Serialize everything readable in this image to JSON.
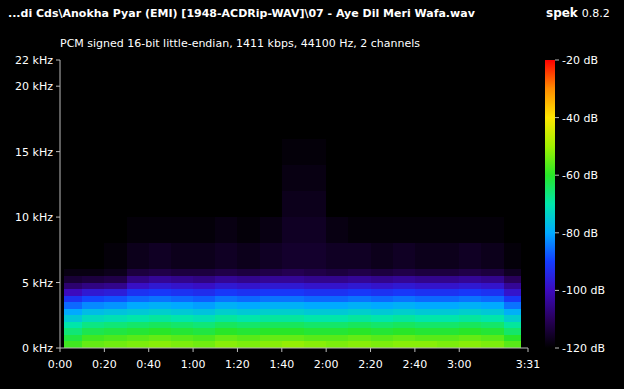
{
  "chart_data": {
    "type": "heatmap",
    "title": "...di Cds\\Anokha Pyar (EMI) [1948-ACDRip-WAV]\\07 - Aye Dil Meri Wafa.wav",
    "subtitle": "PCM signed 16-bit little-endian, 1411 kbps, 44100 Hz, 2 channels",
    "app": "spek",
    "version": "0.8.2",
    "xlim": [
      0,
      211
    ],
    "xticks": [
      {
        "value": 0,
        "label": "0:00"
      },
      {
        "value": 20,
        "label": "0:20"
      },
      {
        "value": 40,
        "label": "0:40"
      },
      {
        "value": 60,
        "label": "1:00"
      },
      {
        "value": 80,
        "label": "1:20"
      },
      {
        "value": 100,
        "label": "1:40"
      },
      {
        "value": 120,
        "label": "2:00"
      },
      {
        "value": 140,
        "label": "2:20"
      },
      {
        "value": 160,
        "label": "2:40"
      },
      {
        "value": 180,
        "label": "3:00"
      },
      {
        "value": 211,
        "label": "3:31"
      }
    ],
    "ylim": [
      0,
      22
    ],
    "yticks": [
      {
        "value": 0,
        "label": "0 kHz"
      },
      {
        "value": 5,
        "label": "5 kHz"
      },
      {
        "value": 10,
        "label": "10 kHz"
      },
      {
        "value": 15,
        "label": "15 kHz"
      },
      {
        "value": 20,
        "label": "20 kHz"
      },
      {
        "value": 22,
        "label": "22 kHz"
      }
    ],
    "grid": false,
    "x_bins": [
      2,
      10,
      20,
      30,
      40,
      50,
      60,
      70,
      80,
      90,
      100,
      110,
      120,
      130,
      140,
      150,
      160,
      170,
      180,
      190,
      200,
      208
    ],
    "y_bins": [
      0,
      0.5,
      1,
      1.5,
      2,
      2.5,
      3,
      3.5,
      4,
      4.5,
      5,
      5.5,
      6,
      8,
      10,
      12,
      14,
      16
    ],
    "cells": [
      [
        -58,
        -55,
        -54,
        -53,
        -52,
        -53,
        -54,
        -52,
        -53,
        -52,
        -51,
        -52,
        -53,
        -52,
        -53,
        -52,
        -52,
        -53,
        -52,
        -53,
        -56
      ],
      [
        -62,
        -58,
        -57,
        -56,
        -55,
        -56,
        -57,
        -55,
        -56,
        -55,
        -55,
        -56,
        -56,
        -55,
        -56,
        -55,
        -56,
        -56,
        -55,
        -56,
        -60
      ],
      [
        -66,
        -63,
        -62,
        -61,
        -60,
        -61,
        -62,
        -60,
        -61,
        -60,
        -60,
        -61,
        -61,
        -60,
        -61,
        -60,
        -61,
        -61,
        -60,
        -61,
        -65
      ],
      [
        -70,
        -67,
        -66,
        -65,
        -64,
        -65,
        -66,
        -64,
        -65,
        -64,
        -64,
        -65,
        -65,
        -64,
        -65,
        -64,
        -65,
        -65,
        -64,
        -65,
        -69
      ],
      [
        -75,
        -72,
        -71,
        -70,
        -69,
        -70,
        -71,
        -69,
        -70,
        -69,
        -69,
        -70,
        -70,
        -69,
        -70,
        -69,
        -70,
        -70,
        -69,
        -70,
        -74
      ],
      [
        -80,
        -77,
        -76,
        -75,
        -74,
        -75,
        -76,
        -74,
        -75,
        -74,
        -74,
        -75,
        -75,
        -74,
        -75,
        -74,
        -75,
        -75,
        -74,
        -75,
        -79
      ],
      [
        -86,
        -83,
        -82,
        -80,
        -79,
        -80,
        -81,
        -79,
        -80,
        -79,
        -79,
        -80,
        -80,
        -79,
        -80,
        -79,
        -80,
        -80,
        -79,
        -80,
        -85
      ],
      [
        -92,
        -89,
        -88,
        -86,
        -85,
        -86,
        -87,
        -85,
        -86,
        -85,
        -85,
        -86,
        -86,
        -85,
        -86,
        -85,
        -86,
        -86,
        -85,
        -86,
        -91
      ],
      [
        -100,
        -97,
        -96,
        -92,
        -91,
        -92,
        -93,
        -91,
        -92,
        -91,
        -91,
        -92,
        -92,
        -91,
        -92,
        -91,
        -92,
        -92,
        -91,
        -92,
        -98
      ],
      [
        -108,
        -106,
        -105,
        -99,
        -97,
        -98,
        -99,
        -97,
        -98,
        -97,
        -97,
        -98,
        -98,
        -97,
        -98,
        -97,
        -98,
        -98,
        -97,
        -98,
        -104
      ],
      [
        -114,
        -113,
        -112,
        -106,
        -104,
        -105,
        -106,
        -104,
        -105,
        -104,
        -104,
        -105,
        -105,
        -104,
        -105,
        -104,
        -105,
        -105,
        -104,
        -105,
        -110
      ],
      [
        -118,
        -118,
        -117,
        -113,
        -112,
        -113,
        -113,
        -112,
        -113,
        -112,
        -111,
        -112,
        -113,
        -112,
        -113,
        -112,
        -113,
        -113,
        -112,
        -113,
        -116
      ],
      [
        -120,
        -120,
        -119,
        -117,
        -116,
        -117,
        -117,
        -116,
        -117,
        -116,
        -115,
        -115,
        -116,
        -116,
        -117,
        -116,
        -117,
        -117,
        -116,
        -117,
        -119
      ],
      [
        -120,
        -120,
        -120,
        -119,
        -119,
        -119,
        -119,
        -118,
        -119,
        -118,
        -116,
        -116,
        -118,
        -119,
        -119,
        -119,
        -119,
        -119,
        -119,
        -119,
        -120
      ],
      [
        -120,
        -120,
        -120,
        -120,
        -120,
        -120,
        -120,
        -120,
        -120,
        -120,
        -117,
        -117,
        -120,
        -120,
        -120,
        -120,
        -120,
        -120,
        -120,
        -120,
        -120
      ],
      [
        -120,
        -120,
        -120,
        -120,
        -120,
        -120,
        -120,
        -120,
        -120,
        -120,
        -118,
        -118,
        -120,
        -120,
        -120,
        -120,
        -120,
        -120,
        -120,
        -120,
        -120
      ],
      [
        -120,
        -120,
        -120,
        -120,
        -120,
        -120,
        -120,
        -120,
        -120,
        -120,
        -119,
        -119,
        -120,
        -120,
        -120,
        -120,
        -120,
        -120,
        -120,
        -120,
        -120
      ]
    ],
    "colorbar": {
      "range": [
        -120,
        -20
      ],
      "ticks": [
        {
          "value": -20,
          "label": "-20 dB"
        },
        {
          "value": -40,
          "label": "-40 dB"
        },
        {
          "value": -60,
          "label": "-60 dB"
        },
        {
          "value": -80,
          "label": "-80 dB"
        },
        {
          "value": -100,
          "label": "-100 dB"
        },
        {
          "value": -120,
          "label": "-120 dB"
        }
      ]
    }
  }
}
